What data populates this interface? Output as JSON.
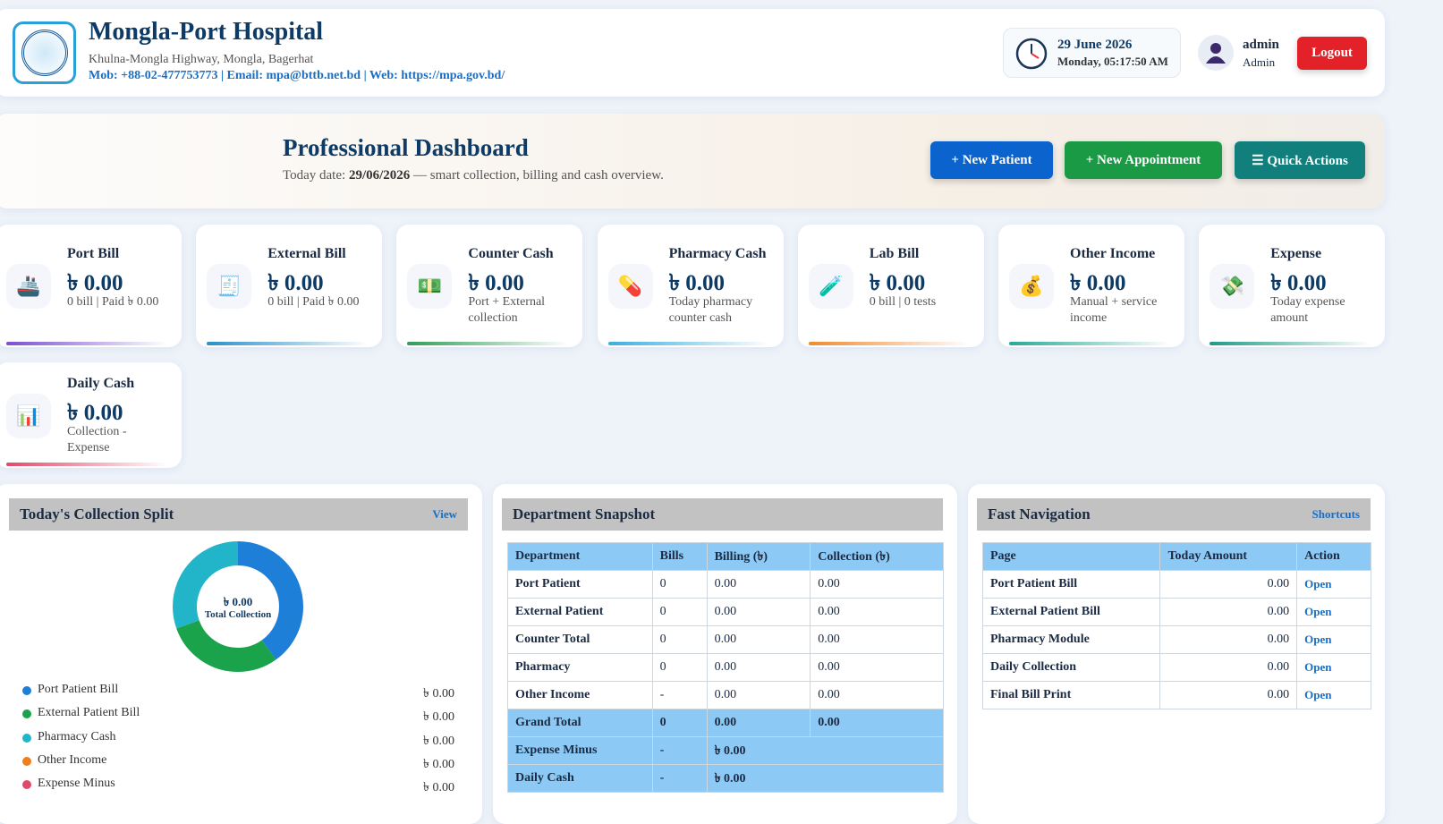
{
  "header": {
    "title": "Mongla-Port Hospital",
    "address": "Khulna-Mongla Highway, Mongla, Bagerhat",
    "contact": "Mob: +88-02-477753773 | Email: mpa@bttb.net.bd | Web: https://mpa.gov.bd/",
    "date": "29 June 2026",
    "time": "Monday, 05:17:50 AM",
    "user": "admin",
    "role": "Admin",
    "logout": "Logout"
  },
  "hero": {
    "title": "Professional Dashboard",
    "subtitle_prefix": "Today date:",
    "subtitle_date": "29/06/2026",
    "subtitle_suffix": "— smart collection, billing and cash overview.",
    "buttons": [
      {
        "label": "+ New Patient",
        "color": "#0b63ce"
      },
      {
        "label": "+ New Appointment",
        "color": "#1a9a45"
      },
      {
        "label": "☰ Quick Actions",
        "color": "#117f7b"
      }
    ]
  },
  "cards": [
    {
      "title": "Port Bill",
      "amount": "৳ 0.00",
      "note": "0 bill | Paid ৳ 0.00",
      "icon": "🚢",
      "accent": "#7b4fd0"
    },
    {
      "title": "External Bill",
      "amount": "৳ 0.00",
      "note": "0 bill | Paid ৳ 0.00",
      "icon": "🧾",
      "accent": "#2a8fc9"
    },
    {
      "title": "Counter Cash",
      "amount": "৳ 0.00",
      "note": "Port + External collection",
      "icon": "💵",
      "accent": "#2f9e57"
    },
    {
      "title": "Pharmacy Cash",
      "amount": "৳ 0.00",
      "note": "Today pharmacy counter cash",
      "icon": "💊",
      "accent": "#3aaee0"
    },
    {
      "title": "Lab Bill",
      "amount": "৳ 0.00",
      "note": "0 bill | 0 tests",
      "icon": "🧪",
      "accent": "#f08a2c"
    },
    {
      "title": "Other Income",
      "amount": "৳ 0.00",
      "note": "Manual + service income",
      "icon": "💰",
      "accent": "#27a99a"
    },
    {
      "title": "Expense",
      "amount": "৳ 0.00",
      "note": "Today expense amount",
      "icon": "💸",
      "accent": "#1f9a8a"
    },
    {
      "title": "Daily Cash",
      "amount": "৳ 0.00",
      "note": "Collection - Expense",
      "icon": "📊",
      "accent": "#e04a6a"
    }
  ],
  "collection": {
    "title": "Today's Collection Split",
    "link": "View",
    "center_amount": "৳ 0.00",
    "center_label": "Total Collection",
    "legend": [
      {
        "name": "Port Patient Bill",
        "amount": "৳ 0.00",
        "color": "#1e7fd8"
      },
      {
        "name": "External Patient Bill",
        "amount": "৳ 0.00",
        "color": "#1aa34a"
      },
      {
        "name": "Pharmacy Cash",
        "amount": "৳ 0.00",
        "color": "#22b5c9"
      },
      {
        "name": "Other Income",
        "amount": "৳ 0.00",
        "color": "#f07f1a"
      },
      {
        "name": "Expense Minus",
        "amount": "৳ 0.00",
        "color": "#e04a6a"
      }
    ]
  },
  "department": {
    "title": "Department Snapshot",
    "columns": [
      "Department",
      "Bills",
      "Billing (৳)",
      "Collection (৳)"
    ],
    "rows": [
      [
        "Port Patient",
        "0",
        "0.00",
        "0.00"
      ],
      [
        "External Patient",
        "0",
        "0.00",
        "0.00"
      ],
      [
        "Counter Total",
        "0",
        "0.00",
        "0.00"
      ],
      [
        "Pharmacy",
        "0",
        "0.00",
        "0.00"
      ],
      [
        "Other Income",
        "-",
        "0.00",
        "0.00"
      ],
      [
        "Grand Total",
        "0",
        "0.00",
        "0.00"
      ],
      [
        "Expense Minus",
        "-",
        "৳ 0.00"
      ],
      [
        "Daily Cash",
        "-",
        "৳ 0.00"
      ]
    ]
  },
  "navigation": {
    "title": "Fast Navigation",
    "link": "Shortcuts",
    "columns": [
      "Page",
      "Today Amount",
      "Action"
    ],
    "rows": [
      [
        "Port Patient Bill",
        "0.00",
        "Open"
      ],
      [
        "External Patient Bill",
        "0.00",
        "Open"
      ],
      [
        "Pharmacy Module",
        "0.00",
        "Open"
      ],
      [
        "Daily Collection",
        "0.00",
        "Open"
      ],
      [
        "Final Bill Print",
        "0.00",
        "Open"
      ]
    ]
  }
}
